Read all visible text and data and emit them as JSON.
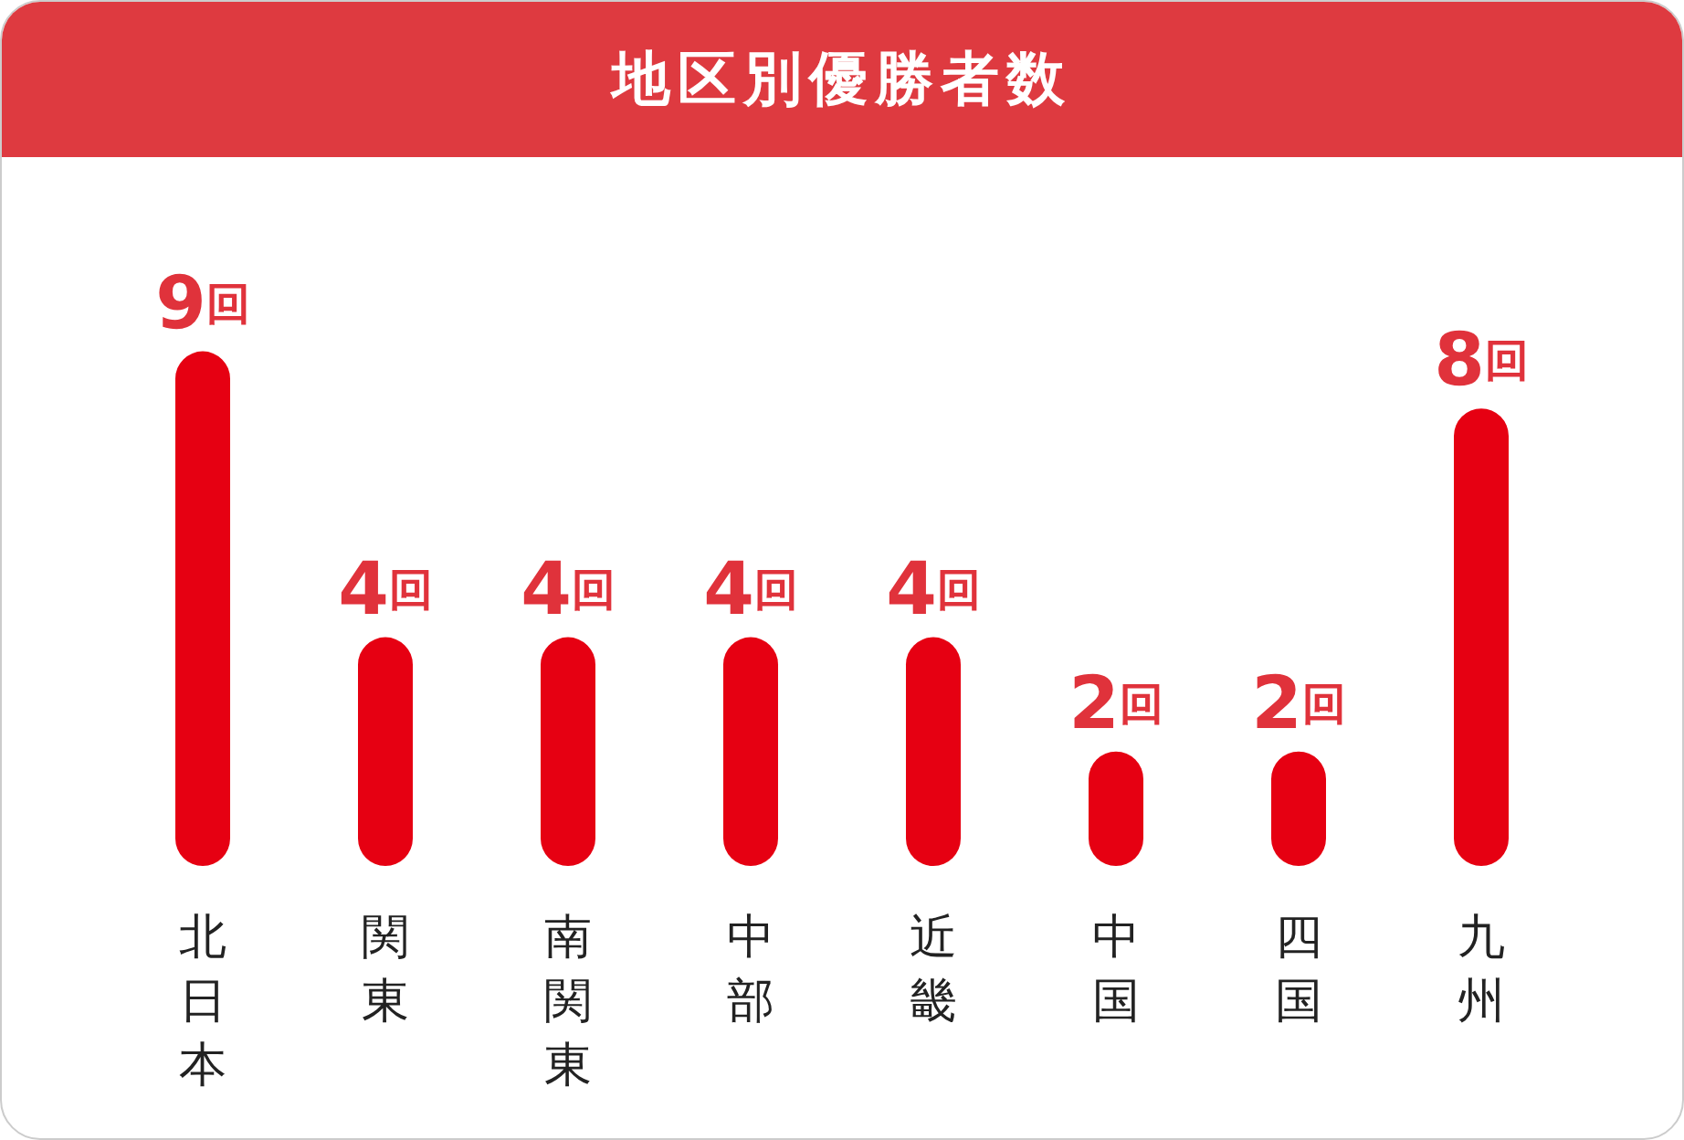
{
  "chart_data": {
    "type": "bar",
    "title": "地区別優勝者数",
    "categories": [
      "北日本",
      "関東",
      "南関東",
      "中部",
      "近畿",
      "中国",
      "四国",
      "九州"
    ],
    "values": [
      9,
      4,
      4,
      4,
      4,
      2,
      2,
      8
    ],
    "value_labels": [
      "9回",
      "4回",
      "4回",
      "4回",
      "4回",
      "2回",
      "2回",
      "8回"
    ],
    "color": "#e60012"
  }
}
